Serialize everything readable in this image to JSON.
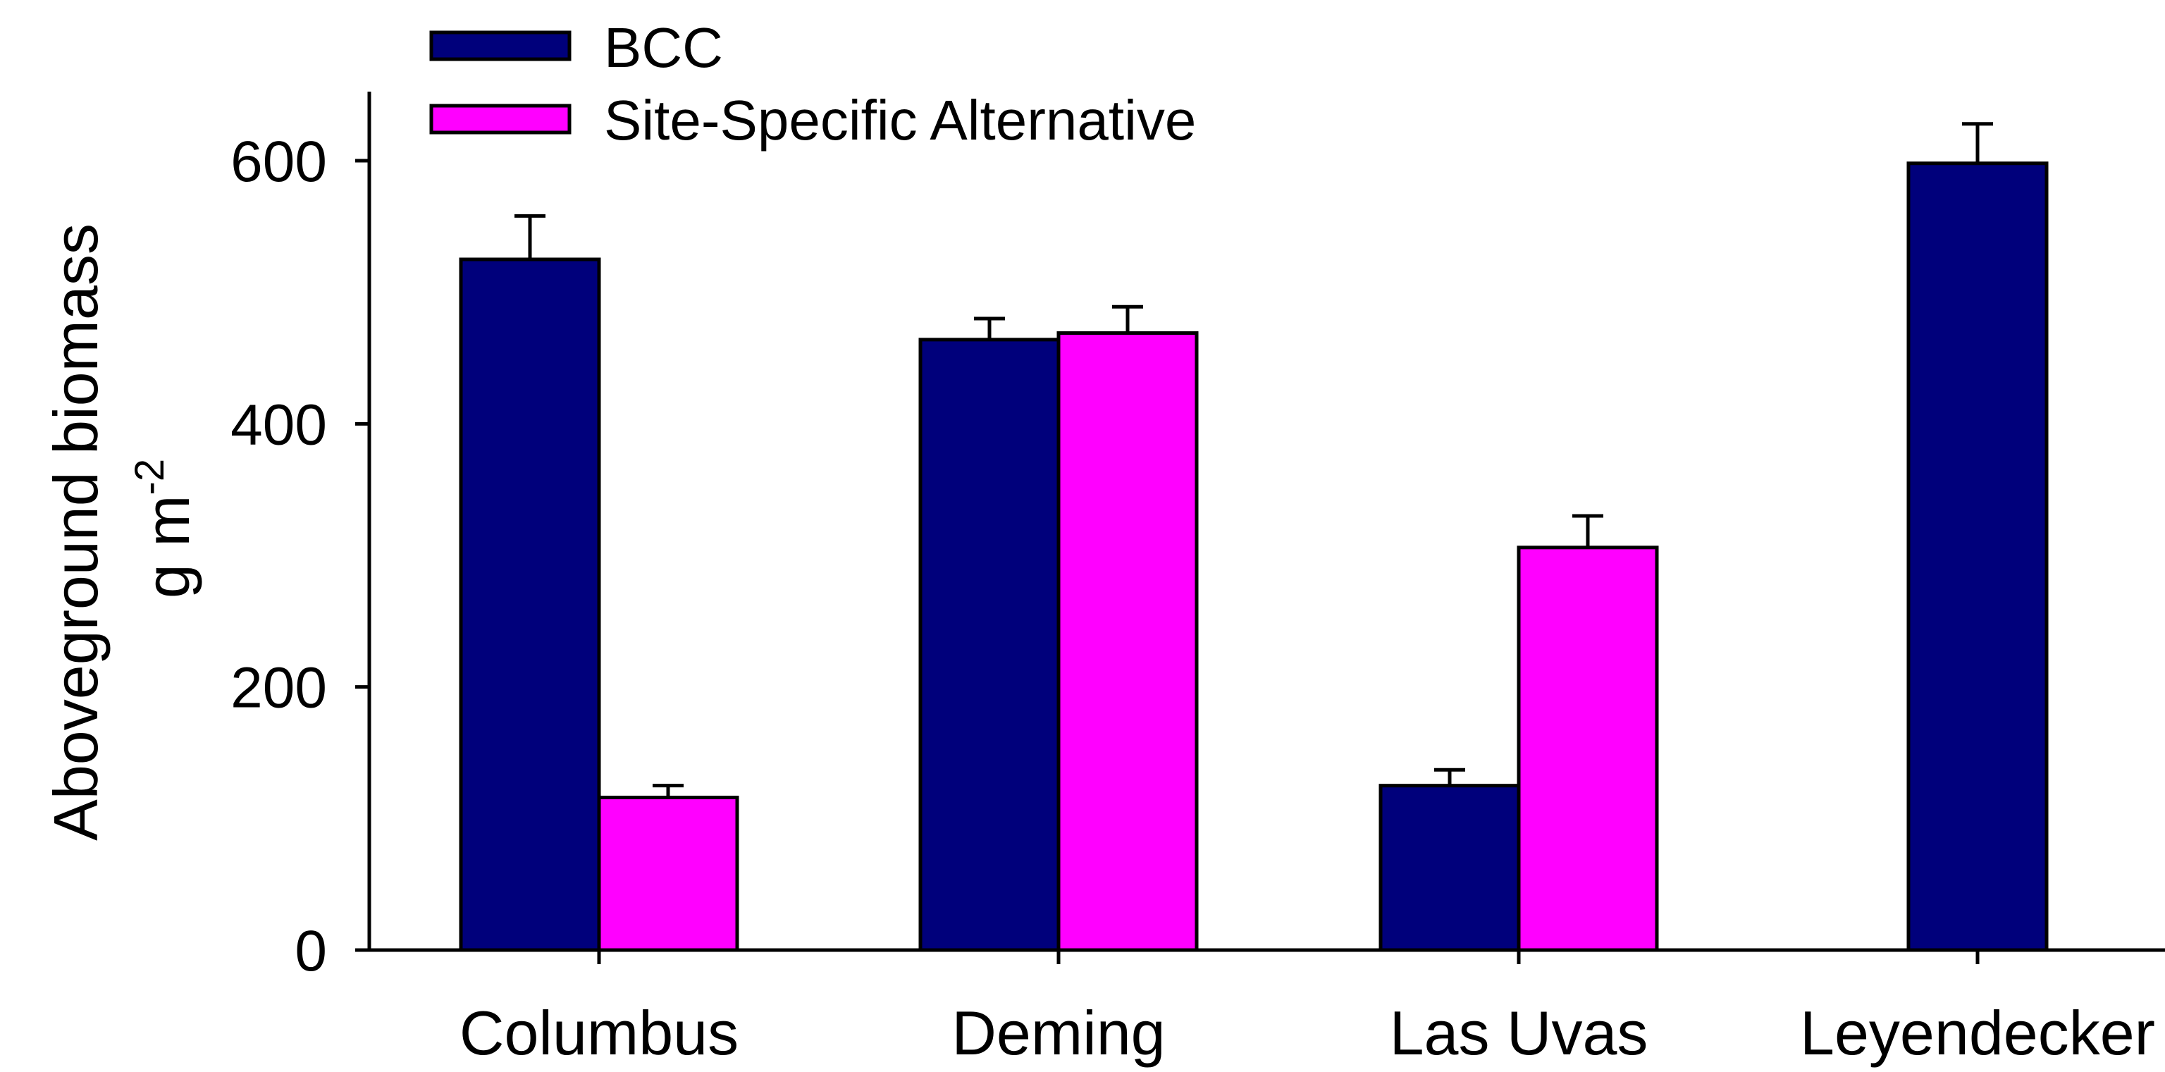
{
  "chart_data": {
    "type": "bar",
    "title": "",
    "xlabel": "",
    "ylabel": "Aboveground biomass",
    "ylabel_line2": "g m",
    "ylabel_line2_sup": "-2",
    "ylim": [
      0,
      650
    ],
    "yticks": [
      0,
      200,
      400,
      600
    ],
    "categories": [
      "Columbus",
      "Deming",
      "Las Uvas",
      "Leyendecker"
    ],
    "series": [
      {
        "name": "BCC",
        "color": "#00007b",
        "values": [
          525,
          464,
          125,
          598
        ],
        "errors": [
          33,
          16,
          12,
          30
        ]
      },
      {
        "name": "Site-Specific Alternative",
        "color": "#ff00ff",
        "values": [
          116,
          469,
          306,
          null
        ],
        "errors": [
          9,
          20,
          24,
          null
        ]
      }
    ],
    "legend": "top-left",
    "grid": false,
    "error_bars": true
  }
}
